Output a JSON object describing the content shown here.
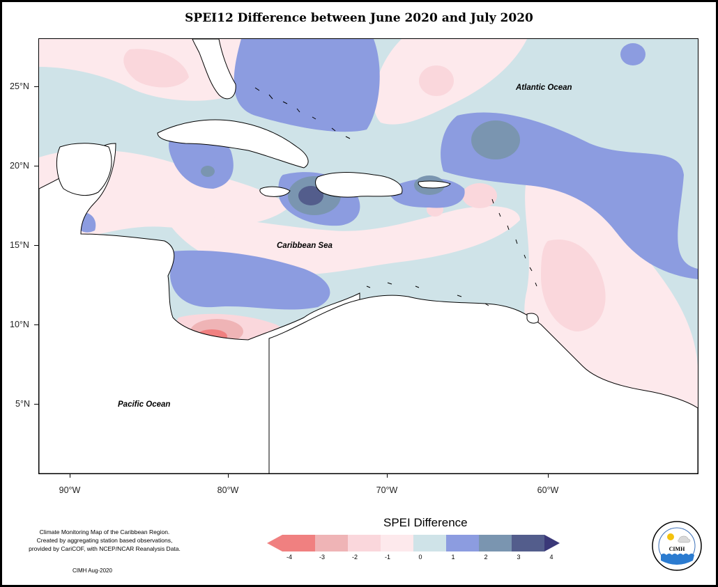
{
  "title": "SPEI12 Difference between June 2020 and July 2020",
  "map": {
    "lat_labels": [
      "25°N",
      "20°N",
      "15°N",
      "10°N",
      "5°N"
    ],
    "lon_labels": [
      "90°W",
      "80°W",
      "70°W",
      "60°W"
    ],
    "ocean_labels": {
      "atlantic": "Atlantic Ocean",
      "caribbean": "Caribbean Sea",
      "pacific": "Pacific Ocean"
    }
  },
  "legend": {
    "title": "SPEI Difference",
    "ticks": [
      "-4",
      "-3",
      "-2",
      "-1",
      "0",
      "1",
      "2",
      "3",
      "4"
    ],
    "colors": [
      "#f08080",
      "#efb4b6",
      "#fad7dc",
      "#fde9ec",
      "#cfe3e8",
      "#8c9ce0",
      "#7a95b0",
      "#535d8c",
      "#3a3878"
    ]
  },
  "credits": {
    "line1": "Climate Monitoring Map of the Caribbean Region.",
    "line2": "Created by aggregating station based observations,",
    "line3": "provided by CariCOF, with NCEP/NCAR Reanalysis Data.",
    "footer": "CIMH Aug-2020"
  },
  "logo": {
    "text": "CIMH"
  }
}
